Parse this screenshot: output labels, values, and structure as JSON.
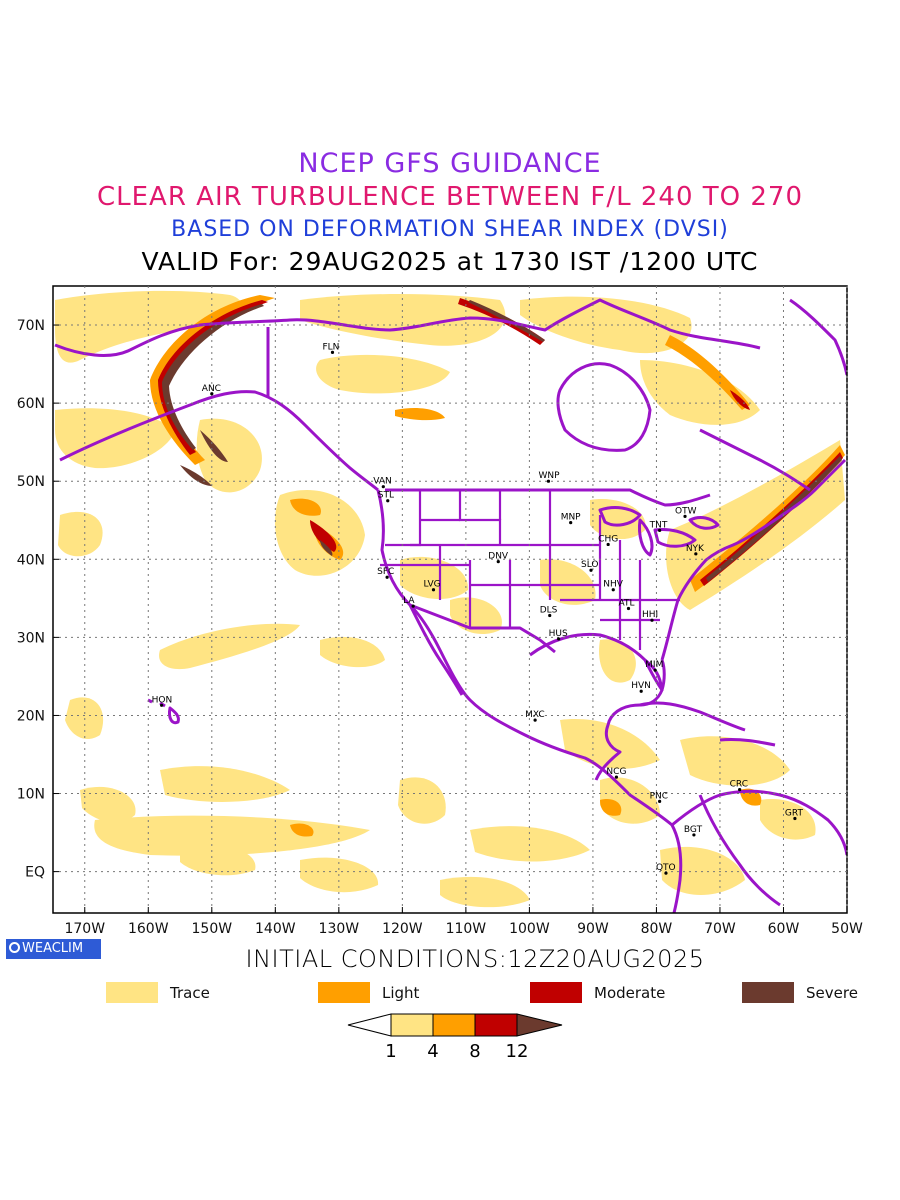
{
  "header": {
    "line1": "NCEP GFS GUIDANCE",
    "line2": "CLEAR AIR TURBULENCE BETWEEN F/L 240 TO 270",
    "line3": "BASED ON DEFORMATION SHEAR INDEX (DVSI)",
    "line4": "VALID For: 29AUG2025 at 1730 IST /1200 UTC"
  },
  "colors": {
    "line1": "#8a2be2",
    "line2": "#e0186e",
    "line3": "#1f3fd9",
    "line4": "#000000",
    "boundaries": "#9b14c8",
    "trace": "#ffe484",
    "light": "#ff9f00",
    "moderate": "#c00000",
    "severe": "#6b3a2e"
  },
  "map": {
    "lat_ticks": [
      "70N",
      "60N",
      "50N",
      "40N",
      "30N",
      "20N",
      "10N",
      "EQ"
    ],
    "lon_ticks": [
      "170W",
      "160W",
      "150W",
      "140W",
      "130W",
      "120W",
      "110W",
      "100W",
      "90W",
      "80W",
      "70W",
      "60W",
      "50W"
    ],
    "stations": [
      {
        "name": "ANC",
        "lon": -150,
        "lat": 61.2
      },
      {
        "name": "FLN",
        "lon": -131,
        "lat": 66.5
      },
      {
        "name": "VAN",
        "lon": -123,
        "lat": 49.3
      },
      {
        "name": "STL",
        "lon": -122.3,
        "lat": 47.5
      },
      {
        "name": "WNP",
        "lon": -97,
        "lat": 50.0
      },
      {
        "name": "MNP",
        "lon": -93.5,
        "lat": 44.7
      },
      {
        "name": "TNT",
        "lon": -79.5,
        "lat": 43.7
      },
      {
        "name": "OTW",
        "lon": -75.5,
        "lat": 45.5
      },
      {
        "name": "NYK",
        "lon": -73.8,
        "lat": 40.7
      },
      {
        "name": "CHG",
        "lon": -87.6,
        "lat": 41.9
      },
      {
        "name": "SLO",
        "lon": -90.3,
        "lat": 38.6
      },
      {
        "name": "DNV",
        "lon": -104.9,
        "lat": 39.7
      },
      {
        "name": "SFC",
        "lon": -122.4,
        "lat": 37.7
      },
      {
        "name": "LVG",
        "lon": -115.1,
        "lat": 36.1
      },
      {
        "name": "LA",
        "lon": -118.3,
        "lat": 34.0
      },
      {
        "name": "NHV",
        "lon": -86.8,
        "lat": 36.1
      },
      {
        "name": "ATL",
        "lon": -84.4,
        "lat": 33.7
      },
      {
        "name": "HHI",
        "lon": -80.7,
        "lat": 32.2
      },
      {
        "name": "DLS",
        "lon": -96.8,
        "lat": 32.8
      },
      {
        "name": "HUS",
        "lon": -95.4,
        "lat": 29.8
      },
      {
        "name": "MIM",
        "lon": -80.2,
        "lat": 25.8
      },
      {
        "name": "HVN",
        "lon": -82.4,
        "lat": 23.1
      },
      {
        "name": "HON",
        "lon": -157.9,
        "lat": 21.3
      },
      {
        "name": "MXC",
        "lon": -99.1,
        "lat": 19.4
      },
      {
        "name": "NCG",
        "lon": -86.3,
        "lat": 12.1
      },
      {
        "name": "PNC",
        "lon": -79.5,
        "lat": 9.0
      },
      {
        "name": "CRC",
        "lon": -66.9,
        "lat": 10.5
      },
      {
        "name": "GRT",
        "lon": -58.2,
        "lat": 6.8
      },
      {
        "name": "BGT",
        "lon": -74.1,
        "lat": 4.7
      },
      {
        "name": "QTO",
        "lon": -78.5,
        "lat": -0.2
      }
    ]
  },
  "footer": {
    "badge": "WEACLIM",
    "initial_conditions": "INITIAL CONDITIONS:12Z20AUG2025"
  },
  "legend": [
    {
      "label": "Trace",
      "color": "#ffe484"
    },
    {
      "label": "Light",
      "color": "#ff9f00"
    },
    {
      "label": "Moderate",
      "color": "#c00000"
    },
    {
      "label": "Severe",
      "color": "#6b3a2e"
    }
  ],
  "colorbar": {
    "ticks": [
      "1",
      "4",
      "8",
      "12"
    ]
  }
}
